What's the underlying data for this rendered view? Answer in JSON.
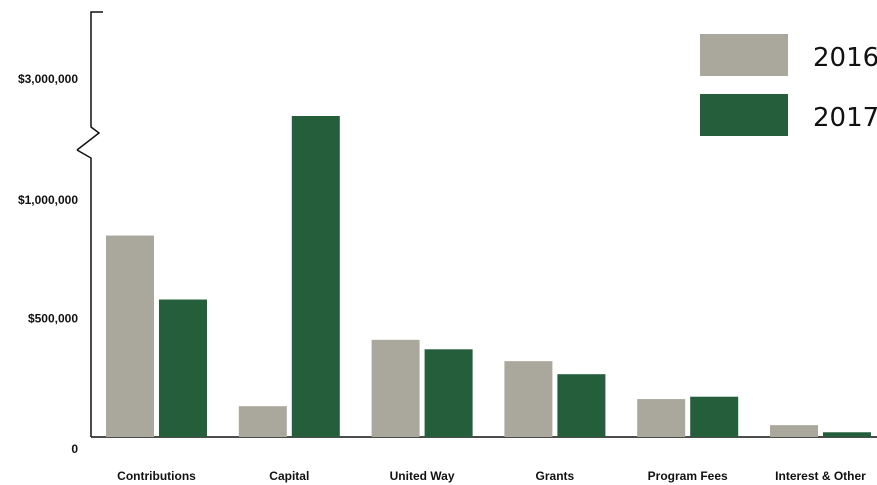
{
  "chart_data": {
    "type": "bar",
    "categories": [
      "Contributions",
      "Capital",
      "United Way",
      "Grants",
      "Program Fees",
      "Interest & Other"
    ],
    "series": [
      {
        "name": "2016",
        "color": "#aaa89c",
        "values": [
          850000,
          130000,
          410000,
          320000,
          160000,
          50000
        ]
      },
      {
        "name": "2017",
        "color": "#245e3a",
        "values": [
          580000,
          2900000,
          370000,
          265000,
          170000,
          20000
        ]
      }
    ],
    "y_tick_labels": [
      "0",
      "$500,000",
      "$1,000,000",
      "$3,000,000"
    ],
    "y_tick_values": [
      0,
      500000,
      1000000,
      3000000
    ],
    "axis_break": {
      "between": [
        1000000,
        3000000
      ]
    },
    "ylim": [
      0,
      3300000
    ],
    "legend_position": "top-right",
    "grid": false
  }
}
